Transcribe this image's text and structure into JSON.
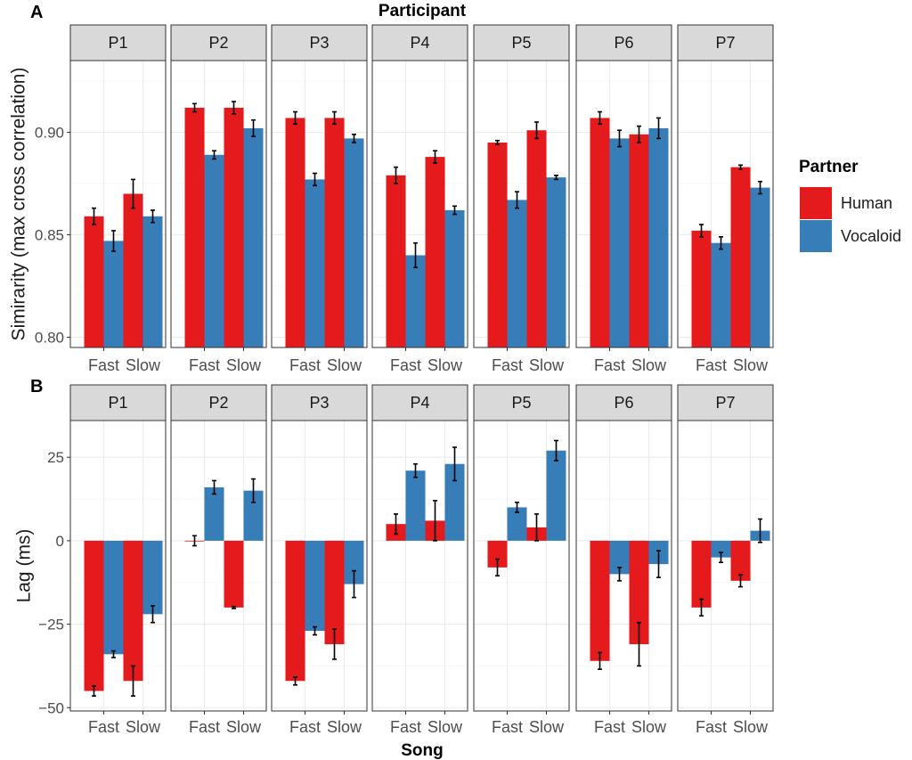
{
  "figure": {
    "panel_a_label": "A",
    "panel_b_label": "B",
    "top_title": "Participant",
    "bottom_xlabel": "Song"
  },
  "legend": {
    "title": "Partner",
    "items": [
      {
        "label": "Human",
        "color": "#e41a1c"
      },
      {
        "label": "Vocaloid",
        "color": "#377eb8"
      }
    ]
  },
  "chart_data": [
    {
      "type": "bar",
      "panel": "A",
      "ylabel": "Simirarity (max cross correlation)",
      "ylim": [
        0.795,
        0.935
      ],
      "yticks": [
        0.8,
        0.85,
        0.9
      ],
      "ytick_labels": [
        "0.80",
        "0.85",
        "0.90"
      ],
      "facets": [
        "P1",
        "P2",
        "P3",
        "P4",
        "P5",
        "P6",
        "P7"
      ],
      "categories": [
        "Fast",
        "Slow"
      ],
      "series": [
        {
          "name": "Human",
          "values": [
            [
              0.859,
              0.87
            ],
            [
              0.912,
              0.912
            ],
            [
              0.907,
              0.907
            ],
            [
              0.879,
              0.888
            ],
            [
              0.895,
              0.901
            ],
            [
              0.907,
              0.899
            ],
            [
              0.852,
              0.883
            ]
          ],
          "err": [
            [
              0.004,
              0.007
            ],
            [
              0.002,
              0.003
            ],
            [
              0.003,
              0.003
            ],
            [
              0.004,
              0.003
            ],
            [
              0.001,
              0.004
            ],
            [
              0.003,
              0.004
            ],
            [
              0.003,
              0.001
            ]
          ]
        },
        {
          "name": "Vocaloid",
          "values": [
            [
              0.847,
              0.859
            ],
            [
              0.889,
              0.902
            ],
            [
              0.877,
              0.897
            ],
            [
              0.84,
              0.862
            ],
            [
              0.867,
              0.878
            ],
            [
              0.897,
              0.902
            ],
            [
              0.846,
              0.873
            ]
          ],
          "err": [
            [
              0.005,
              0.003
            ],
            [
              0.002,
              0.004
            ],
            [
              0.003,
              0.002
            ],
            [
              0.006,
              0.002
            ],
            [
              0.004,
              0.001
            ],
            [
              0.004,
              0.005
            ],
            [
              0.003,
              0.003
            ]
          ]
        }
      ]
    },
    {
      "type": "bar",
      "panel": "B",
      "ylabel": "Lag (ms)",
      "ylim": [
        -51,
        36
      ],
      "yticks": [
        -50,
        -25,
        0,
        25
      ],
      "ytick_labels": [
        "−50",
        "−25",
        "0",
        "25"
      ],
      "facets": [
        "P1",
        "P2",
        "P3",
        "P4",
        "P5",
        "P6",
        "P7"
      ],
      "categories": [
        "Fast",
        "Slow"
      ],
      "xlabel": "Song",
      "series": [
        {
          "name": "Human",
          "values": [
            [
              -45,
              -42
            ],
            [
              0,
              -20
            ],
            [
              -42,
              -31
            ],
            [
              5,
              6
            ],
            [
              -8,
              4
            ],
            [
              -36,
              -31
            ],
            [
              -20,
              -12
            ]
          ],
          "err": [
            [
              1.5,
              4.5
            ],
            [
              1.5,
              0.3
            ],
            [
              1.2,
              4.5
            ],
            [
              3,
              6
            ],
            [
              2.5,
              4
            ],
            [
              2.5,
              6.5
            ],
            [
              2.5,
              1.8
            ]
          ]
        },
        {
          "name": "Vocaloid",
          "values": [
            [
              -34,
              -22
            ],
            [
              16,
              15
            ],
            [
              -27,
              -13
            ],
            [
              21,
              23
            ],
            [
              10,
              27
            ],
            [
              -10,
              -7
            ],
            [
              -5,
              3
            ]
          ],
          "err": [
            [
              1,
              2.5
            ],
            [
              2,
              3.5
            ],
            [
              1.2,
              4
            ],
            [
              2,
              5
            ],
            [
              1.5,
              3
            ],
            [
              2,
              4
            ],
            [
              1.5,
              3.5
            ]
          ]
        }
      ]
    }
  ]
}
